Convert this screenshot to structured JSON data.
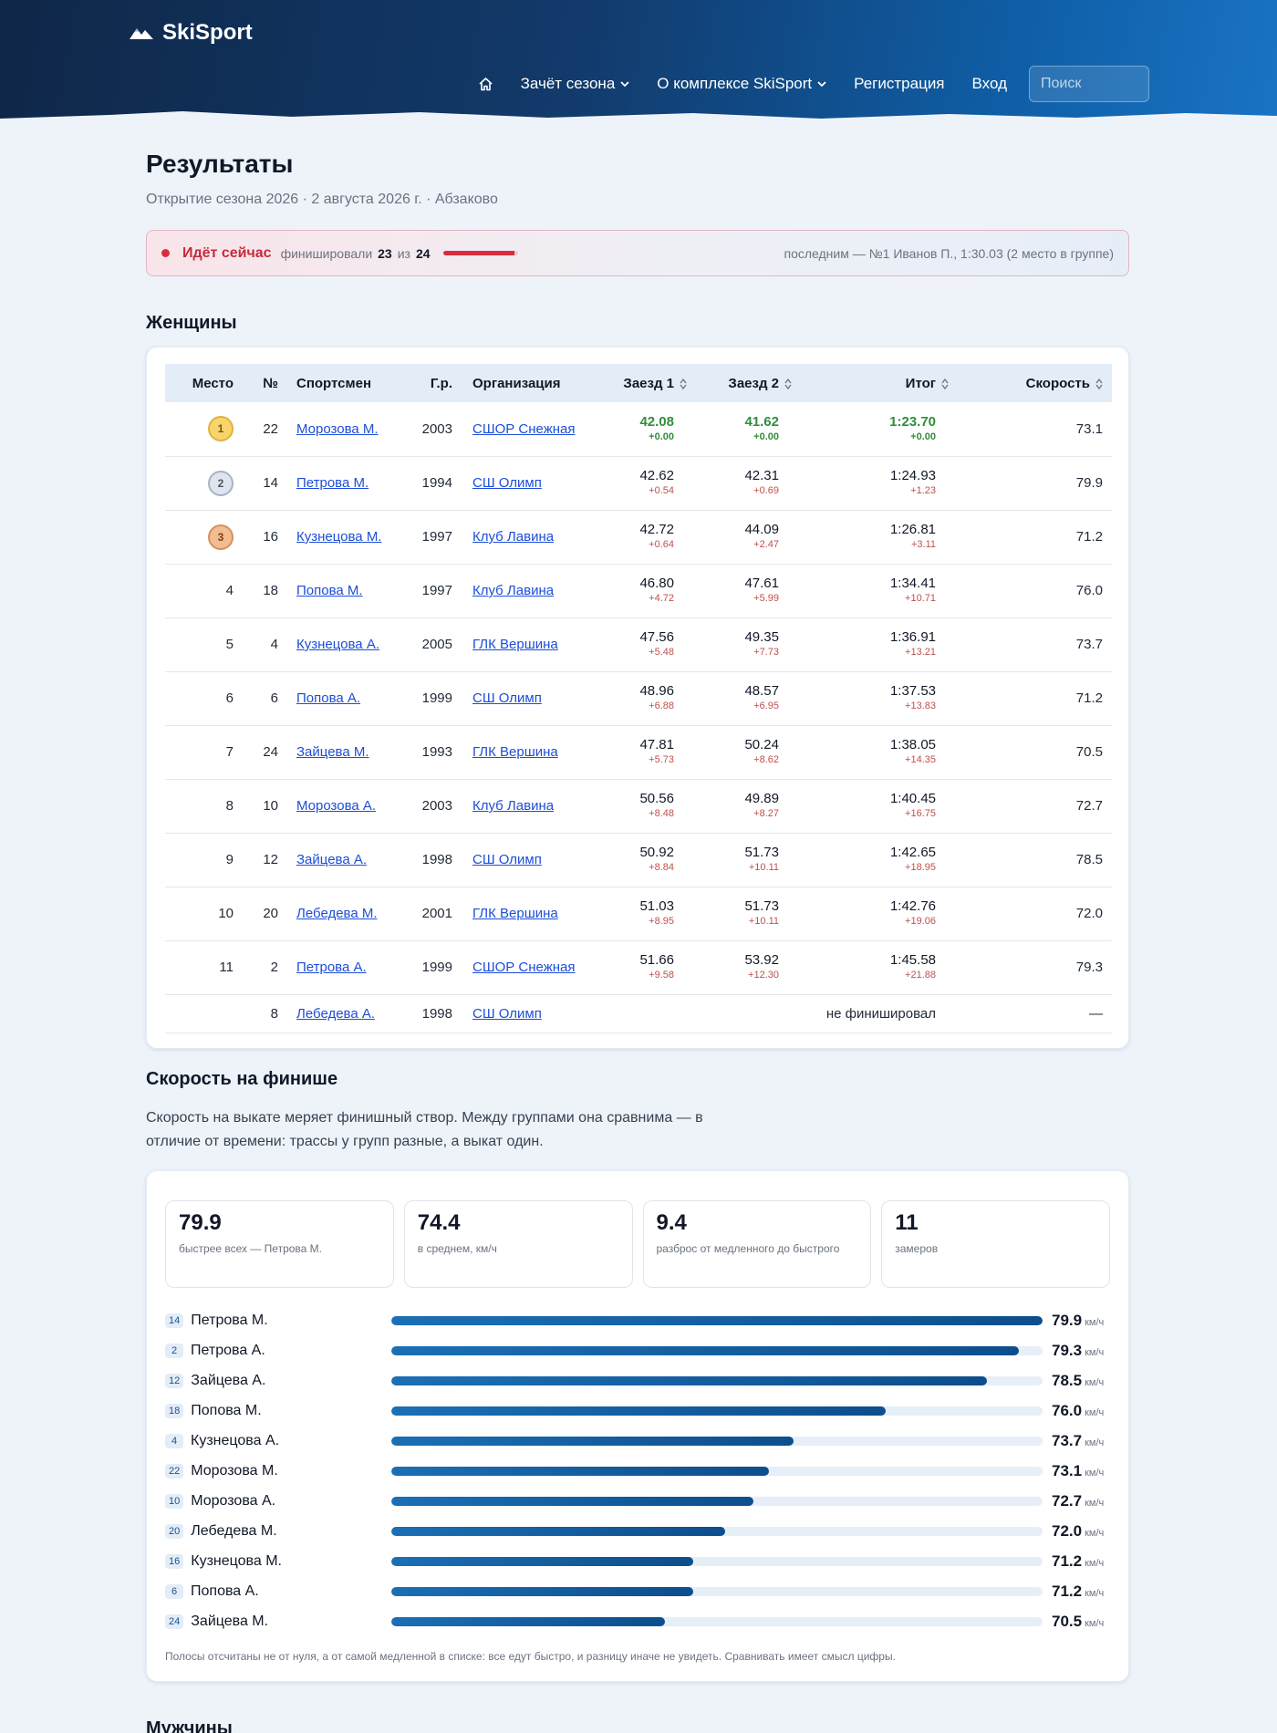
{
  "header": {
    "logo": "SkiSport",
    "nav": {
      "home_icon": "home-icon",
      "season": "Зачёт сезона",
      "about": "О комплексе SkiSport",
      "register": "Регистрация",
      "login": "Вход"
    },
    "search_placeholder": "Поиск",
    "colors": {
      "gradient_start": "#0f2748",
      "gradient_end": "#1a74c4"
    }
  },
  "page": {
    "title": "Результаты",
    "subtitle": "Открытие сезона 2026 · 2 августа 2026 г. · Абзаково"
  },
  "live": {
    "label": "Идёт сейчас",
    "finished_label": "финишировали",
    "finished": "23",
    "of_label": "из",
    "total": "24",
    "progress_fraction": 0.958,
    "last": "последним — №1 Иванов П., 1:30.03 (2 место в группе)"
  },
  "women": {
    "title": "Женщины",
    "columns": {
      "place": "Место",
      "bib": "№",
      "athlete": "Спортсмен",
      "year": "Г.р.",
      "org": "Организация",
      "run1": "Заезд 1",
      "run2": "Заезд 2",
      "total": "Итог",
      "speed": "Скорость"
    },
    "rows": [
      {
        "place": "1",
        "bib": "22",
        "name": "Морозова М.",
        "year": "2003",
        "org": "СШОР Снежная",
        "r1": "42.08",
        "r1d": "+0.00",
        "r2": "41.62",
        "r2d": "+0.00",
        "tot": "1:23.70",
        "totd": "+0.00",
        "speed": "73.1"
      },
      {
        "place": "2",
        "bib": "14",
        "name": "Петрова М.",
        "year": "1994",
        "org": "СШ Олимп",
        "r1": "42.62",
        "r1d": "+0.54",
        "r2": "42.31",
        "r2d": "+0.69",
        "tot": "1:24.93",
        "totd": "+1.23",
        "speed": "79.9"
      },
      {
        "place": "3",
        "bib": "16",
        "name": "Кузнецова М.",
        "year": "1997",
        "org": "Клуб Лавина",
        "r1": "42.72",
        "r1d": "+0.64",
        "r2": "44.09",
        "r2d": "+2.47",
        "tot": "1:26.81",
        "totd": "+3.11",
        "speed": "71.2"
      },
      {
        "place": "4",
        "bib": "18",
        "name": "Попова М.",
        "year": "1997",
        "org": "Клуб Лавина",
        "r1": "46.80",
        "r1d": "+4.72",
        "r2": "47.61",
        "r2d": "+5.99",
        "tot": "1:34.41",
        "totd": "+10.71",
        "speed": "76.0"
      },
      {
        "place": "5",
        "bib": "4",
        "name": "Кузнецова А.",
        "year": "2005",
        "org": "ГЛК Вершина",
        "r1": "47.56",
        "r1d": "+5.48",
        "r2": "49.35",
        "r2d": "+7.73",
        "tot": "1:36.91",
        "totd": "+13.21",
        "speed": "73.7"
      },
      {
        "place": "6",
        "bib": "6",
        "name": "Попова А.",
        "year": "1999",
        "org": "СШ Олимп",
        "r1": "48.96",
        "r1d": "+6.88",
        "r2": "48.57",
        "r2d": "+6.95",
        "tot": "1:37.53",
        "totd": "+13.83",
        "speed": "71.2"
      },
      {
        "place": "7",
        "bib": "24",
        "name": "Зайцева М.",
        "year": "1993",
        "org": "ГЛК Вершина",
        "r1": "47.81",
        "r1d": "+5.73",
        "r2": "50.24",
        "r2d": "+8.62",
        "tot": "1:38.05",
        "totd": "+14.35",
        "speed": "70.5"
      },
      {
        "place": "8",
        "bib": "10",
        "name": "Морозова А.",
        "year": "2003",
        "org": "Клуб Лавина",
        "r1": "50.56",
        "r1d": "+8.48",
        "r2": "49.89",
        "r2d": "+8.27",
        "tot": "1:40.45",
        "totd": "+16.75",
        "speed": "72.7"
      },
      {
        "place": "9",
        "bib": "12",
        "name": "Зайцева А.",
        "year": "1998",
        "org": "СШ Олимп",
        "r1": "50.92",
        "r1d": "+8.84",
        "r2": "51.73",
        "r2d": "+10.11",
        "tot": "1:42.65",
        "totd": "+18.95",
        "speed": "78.5"
      },
      {
        "place": "10",
        "bib": "20",
        "name": "Лебедева М.",
        "year": "2001",
        "org": "ГЛК Вершина",
        "r1": "51.03",
        "r1d": "+8.95",
        "r2": "51.73",
        "r2d": "+10.11",
        "tot": "1:42.76",
        "totd": "+19.06",
        "speed": "72.0"
      },
      {
        "place": "11",
        "bib": "2",
        "name": "Петрова А.",
        "year": "1999",
        "org": "СШОР Снежная",
        "r1": "51.66",
        "r1d": "+9.58",
        "r2": "53.92",
        "r2d": "+12.30",
        "tot": "1:45.58",
        "totd": "+21.88",
        "speed": "79.3"
      }
    ],
    "dnf": {
      "bib": "8",
      "name": "Лебедева А.",
      "year": "1998",
      "org": "СШ Олимп",
      "status": "не финишировал",
      "speed": "—"
    }
  },
  "speed": {
    "title": "Скорость на финише",
    "description": "Скорость на выкате меряет финишный створ. Между группами она сравнима — в отличие от времени: трассы у групп разные, а выкат один.",
    "stats": [
      {
        "value": "79.9",
        "label": "быстрее всех — Петрова М."
      },
      {
        "value": "74.4",
        "label": "в среднем, км/ч"
      },
      {
        "value": "9.4",
        "label": "разброс от медленного до быстрого"
      },
      {
        "value": "11",
        "label": "замеров"
      }
    ],
    "unit": "км/ч",
    "min": 70.5,
    "max": 79.9,
    "bars": [
      {
        "bib": "14",
        "name": "Петрова М.",
        "value": "79.9"
      },
      {
        "bib": "2",
        "name": "Петрова А.",
        "value": "79.3"
      },
      {
        "bib": "12",
        "name": "Зайцева А.",
        "value": "78.5"
      },
      {
        "bib": "18",
        "name": "Попова М.",
        "value": "76.0"
      },
      {
        "bib": "4",
        "name": "Кузнецова А.",
        "value": "73.7"
      },
      {
        "bib": "22",
        "name": "Морозова М.",
        "value": "73.1"
      },
      {
        "bib": "10",
        "name": "Морозова А.",
        "value": "72.7"
      },
      {
        "bib": "20",
        "name": "Лебедева М.",
        "value": "72.0"
      },
      {
        "bib": "16",
        "name": "Кузнецова М.",
        "value": "71.2"
      },
      {
        "bib": "6",
        "name": "Попова А.",
        "value": "71.2"
      },
      {
        "bib": "24",
        "name": "Зайцева М.",
        "value": "70.5"
      }
    ],
    "note": "Полосы отсчитаны не от нуля, а от самой медленной в списке: все едут быстро, и разницу иначе не увидеть. Сравнивать имеет смысл цифры."
  },
  "men": {
    "title": "Мужчины"
  }
}
